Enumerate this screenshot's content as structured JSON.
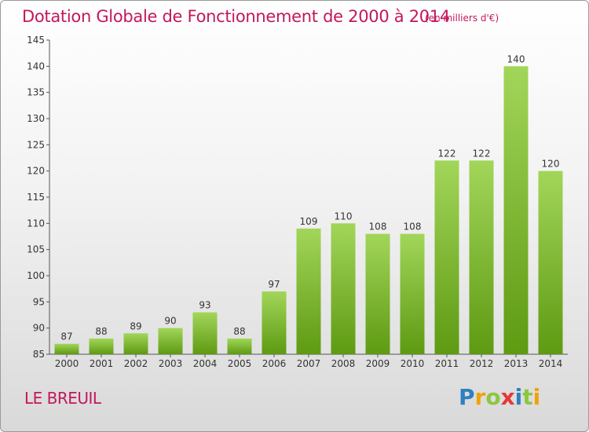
{
  "header": {
    "title": "Dotation Globale de Fonctionnement de 2000 à 2014",
    "unit": "(en milliers d'€)"
  },
  "footer": {
    "commune": "LE BREUIL",
    "logo": "Proxiti"
  },
  "colors": {
    "title": "#c2185b",
    "bar_light": "#a2d65a",
    "bar_dark": "#5e9a12"
  },
  "chart_data": {
    "type": "bar",
    "title": "Dotation Globale de Fonctionnement de 2000 à 2014",
    "subtitle": "(en milliers d'€)",
    "categories": [
      "2000",
      "2001",
      "2002",
      "2003",
      "2004",
      "2005",
      "2006",
      "2007",
      "2008",
      "2009",
      "2010",
      "2011",
      "2012",
      "2013",
      "2014"
    ],
    "values": [
      87,
      88,
      89,
      90,
      93,
      88,
      97,
      109,
      110,
      108,
      108,
      122,
      122,
      140,
      120
    ],
    "ylim": [
      85,
      145
    ],
    "yticks": [
      85,
      90,
      95,
      100,
      105,
      110,
      115,
      120,
      125,
      130,
      135,
      140,
      145
    ],
    "grid": false,
    "data_labels": true
  }
}
